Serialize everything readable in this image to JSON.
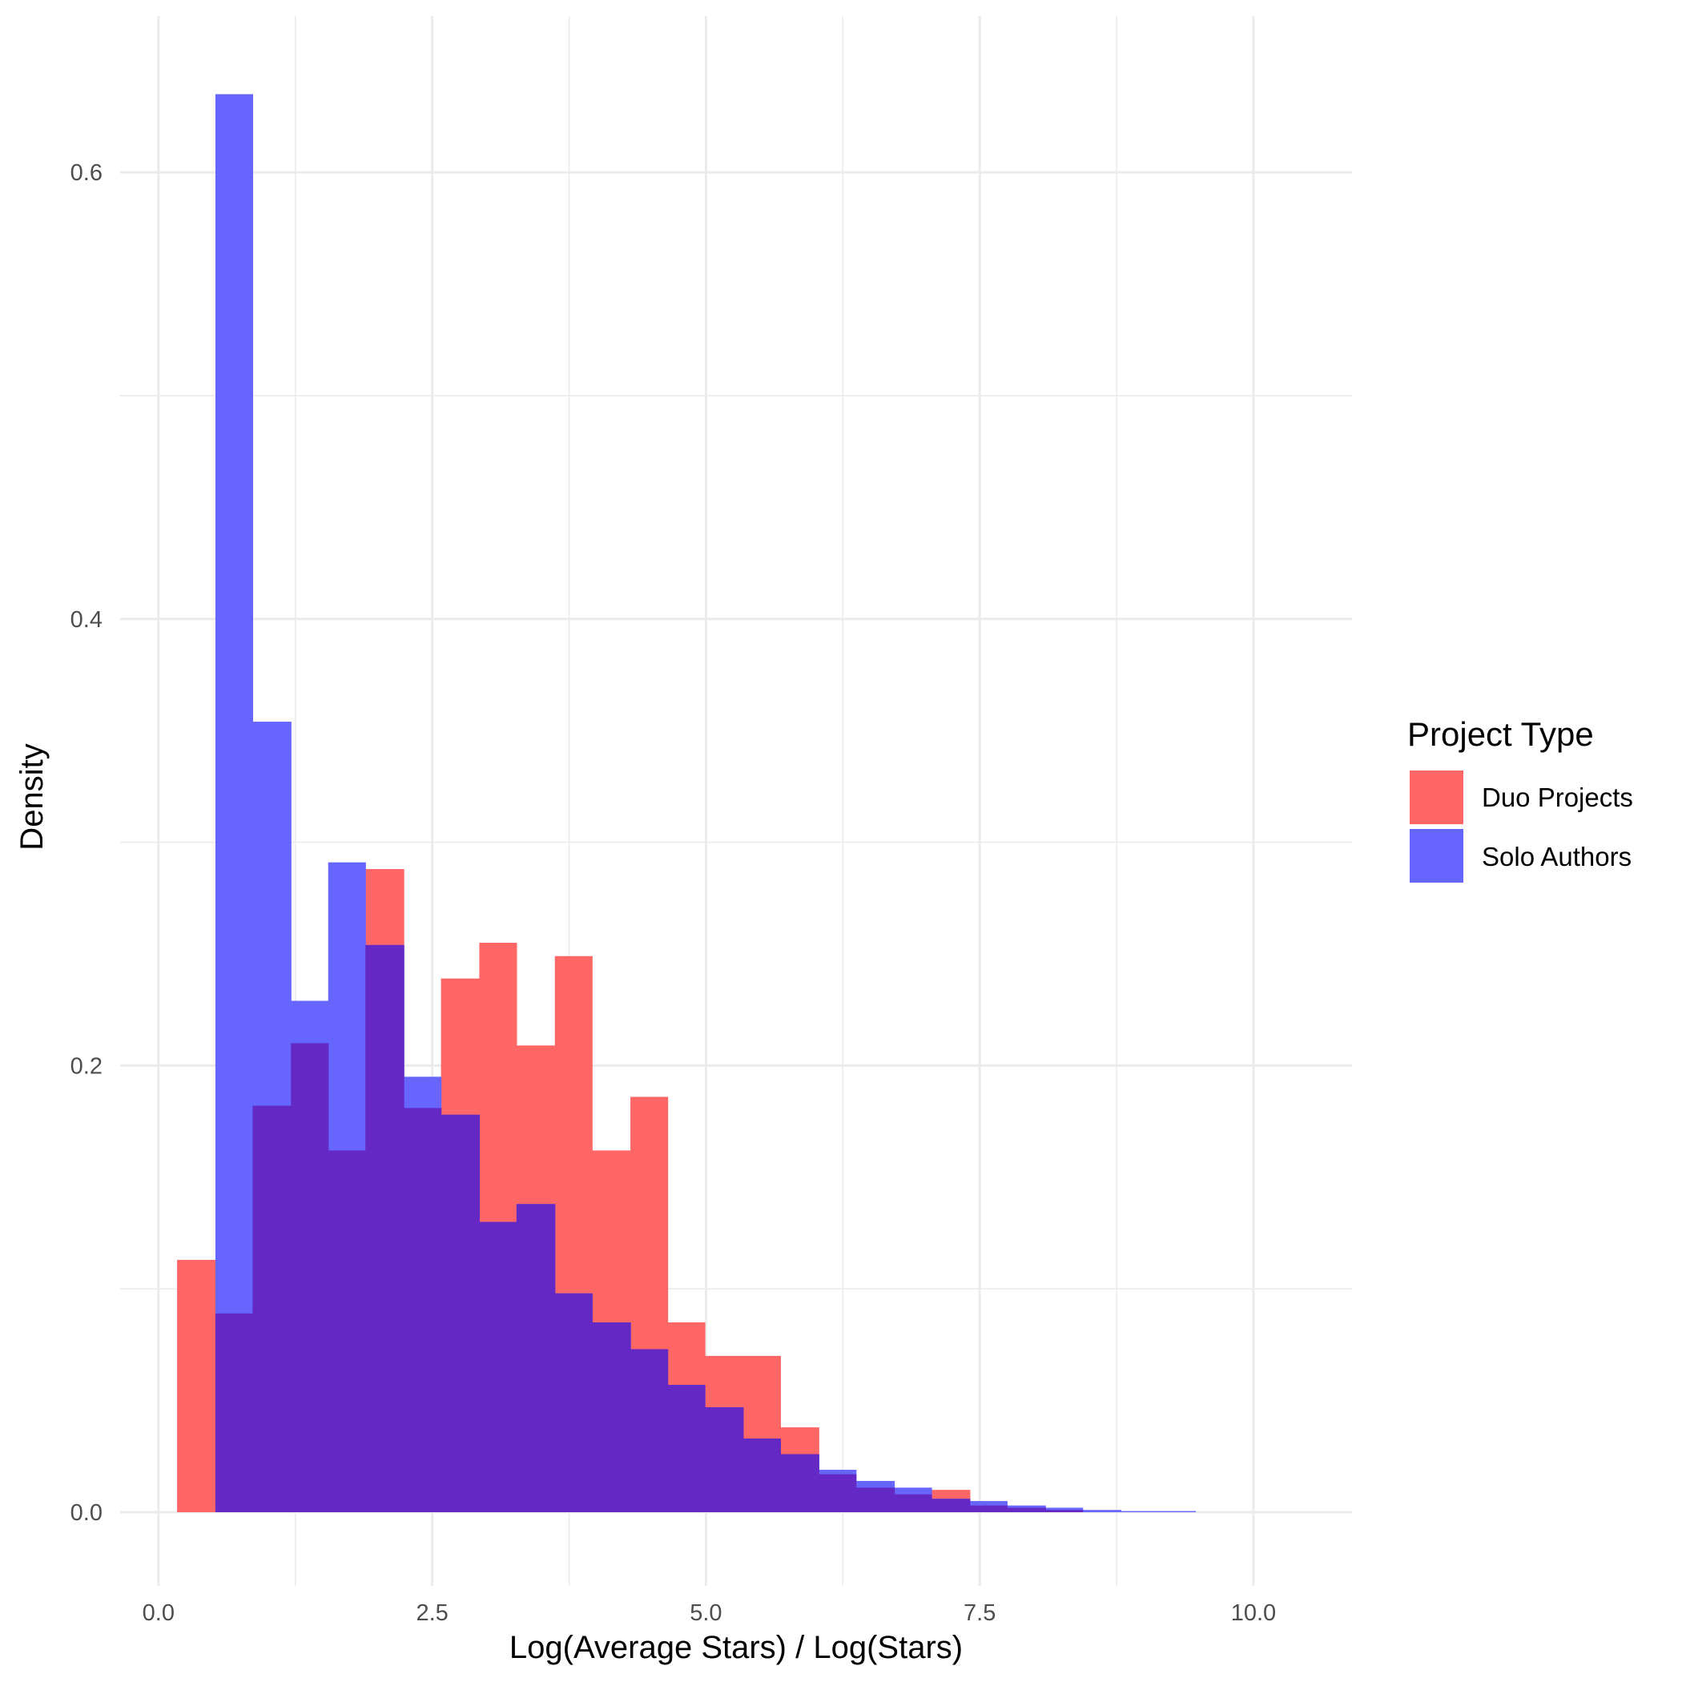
{
  "chart_data": {
    "type": "histogram",
    "title": "",
    "xlabel": "Log(Average Stars) / Log(Stars)",
    "ylabel": "Density",
    "xlim": [
      -0.35,
      10.9
    ],
    "ylim": [
      -0.033,
      0.67
    ],
    "x_ticks": [
      0.0,
      2.5,
      5.0,
      7.5,
      10.0
    ],
    "x_tick_labels": [
      "0.0",
      "2.5",
      "5.0",
      "7.5",
      "10.0"
    ],
    "y_ticks": [
      0.0,
      0.2,
      0.4,
      0.6
    ],
    "y_tick_labels": [
      "0.0",
      "0.2",
      "0.4",
      "0.6"
    ],
    "grid": true,
    "legend": {
      "title": "Project Type",
      "placement": "right"
    },
    "bin_edges": [
      0.17,
      0.52,
      0.86,
      1.21,
      1.55,
      1.89,
      2.24,
      2.58,
      2.93,
      3.27,
      3.62,
      3.96,
      4.31,
      4.65,
      4.99,
      5.34,
      5.68,
      6.03,
      6.37,
      6.72,
      7.06,
      7.41,
      7.75,
      8.1,
      8.44,
      8.79,
      9.13,
      9.47
    ],
    "series": [
      {
        "name": "Duo Projects",
        "color": "#ff6666",
        "values": [
          0.113,
          0.089,
          0.182,
          0.21,
          0.162,
          0.288,
          0.181,
          0.239,
          0.255,
          0.209,
          0.249,
          0.162,
          0.186,
          0.085,
          0.07,
          0.07,
          0.038,
          0.017,
          0.011,
          0.008,
          0.01,
          0.003,
          0.002,
          0.001,
          0.0,
          0.0,
          0.0
        ]
      },
      {
        "name": "Solo Authors",
        "color": "#6666ff",
        "values": [
          0.0,
          0.635,
          0.354,
          0.229,
          0.291,
          0.254,
          0.195,
          0.178,
          0.13,
          0.138,
          0.098,
          0.085,
          0.073,
          0.057,
          0.047,
          0.033,
          0.026,
          0.019,
          0.014,
          0.011,
          0.006,
          0.005,
          0.003,
          0.002,
          0.001,
          0.0005,
          0.0005
        ]
      }
    ]
  }
}
